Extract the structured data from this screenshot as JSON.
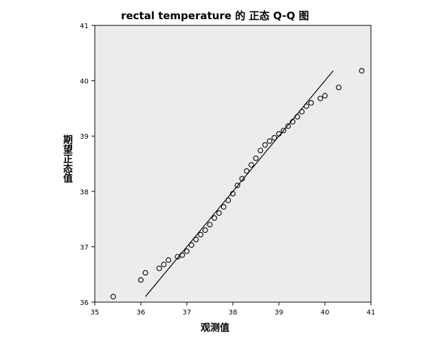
{
  "chart_data": {
    "type": "scatter",
    "title": "rectal temperature 的 正态 Q-Q 图",
    "xlabel": "观测值",
    "ylabel": "期望正态值",
    "xlim": [
      35,
      41
    ],
    "ylim": [
      36,
      41
    ],
    "xticks": [
      "35",
      "36",
      "37",
      "38",
      "39",
      "40",
      "41"
    ],
    "yticks": [
      "36",
      "37",
      "38",
      "39",
      "40",
      "41"
    ],
    "grid": false,
    "plot_background": "#ececec",
    "marker": "open-circle",
    "reference_line": {
      "x": [
        36.1,
        40.18
      ],
      "y": [
        36.1,
        40.18
      ]
    },
    "points": [
      [
        35.4,
        36.1
      ],
      [
        36.0,
        36.4
      ],
      [
        36.1,
        36.53
      ],
      [
        36.4,
        36.61
      ],
      [
        36.5,
        36.68
      ],
      [
        36.6,
        36.76
      ],
      [
        36.8,
        36.82
      ],
      [
        36.9,
        36.85
      ],
      [
        37.0,
        36.92
      ],
      [
        37.1,
        37.03
      ],
      [
        37.2,
        37.13
      ],
      [
        37.3,
        37.22
      ],
      [
        37.4,
        37.3
      ],
      [
        37.5,
        37.4
      ],
      [
        37.6,
        37.52
      ],
      [
        37.7,
        37.61
      ],
      [
        37.8,
        37.72
      ],
      [
        37.9,
        37.84
      ],
      [
        38.0,
        37.96
      ],
      [
        38.1,
        38.11
      ],
      [
        38.2,
        38.23
      ],
      [
        38.3,
        38.37
      ],
      [
        38.4,
        38.48
      ],
      [
        38.5,
        38.6
      ],
      [
        38.6,
        38.74
      ],
      [
        38.7,
        38.84
      ],
      [
        38.8,
        38.91
      ],
      [
        38.9,
        38.97
      ],
      [
        39.0,
        39.04
      ],
      [
        39.1,
        39.1
      ],
      [
        39.2,
        39.18
      ],
      [
        39.3,
        39.26
      ],
      [
        39.4,
        39.35
      ],
      [
        39.5,
        39.44
      ],
      [
        39.6,
        39.54
      ],
      [
        39.7,
        39.6
      ],
      [
        39.9,
        39.68
      ],
      [
        40.0,
        39.73
      ],
      [
        40.3,
        39.88
      ],
      [
        40.8,
        40.18
      ]
    ]
  }
}
